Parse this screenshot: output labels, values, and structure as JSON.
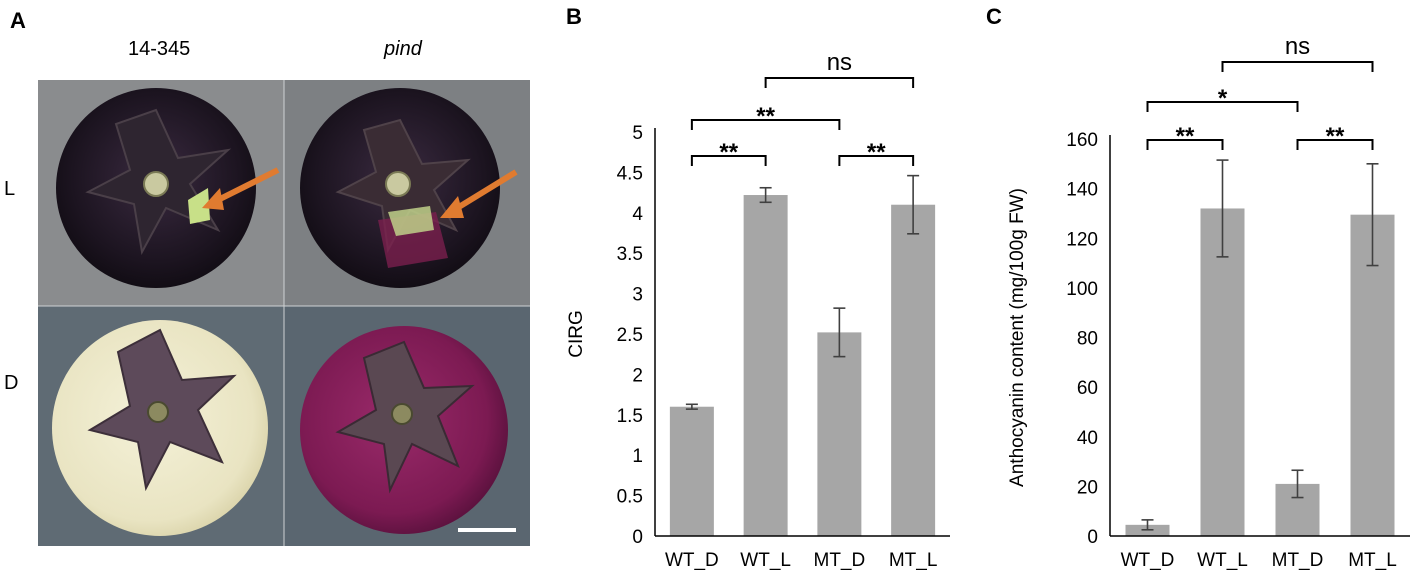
{
  "panels": {
    "a": "A",
    "b": "B",
    "c": "C"
  },
  "photo": {
    "col_labels": [
      "14-345",
      "pind"
    ],
    "row_labels": [
      "L",
      "D"
    ]
  },
  "chart_data": [
    {
      "type": "bar",
      "panel": "B",
      "categories": [
        "WT_D",
        "WT_L",
        "MT_D",
        "MT_L"
      ],
      "values": [
        1.6,
        4.22,
        2.52,
        4.1
      ],
      "errors": [
        0.03,
        0.09,
        0.3,
        0.36
      ],
      "ylabel": "CIRG",
      "ylim": [
        0,
        5
      ],
      "yticks": [
        0,
        0.5,
        1,
        1.5,
        2,
        2.5,
        3,
        3.5,
        4,
        4.5,
        5
      ],
      "bar_color": "#a6a6a6",
      "significance": [
        {
          "from": 0,
          "to": 1,
          "label": "**"
        },
        {
          "from": 2,
          "to": 3,
          "label": "**"
        },
        {
          "from": 0,
          "to": 2,
          "label": "**"
        },
        {
          "from": 1,
          "to": 3,
          "label": "ns"
        }
      ]
    },
    {
      "type": "bar",
      "panel": "C",
      "categories": [
        "WT_D",
        "WT_L",
        "MT_D",
        "MT_L"
      ],
      "values": [
        4.5,
        132,
        21,
        129.5
      ],
      "errors": [
        2,
        19.5,
        5.5,
        20.5
      ],
      "ylabel": "Anthocyanin content  (mg/100g FW)",
      "ylim": [
        0,
        160
      ],
      "yticks": [
        0,
        20,
        40,
        60,
        80,
        100,
        120,
        140,
        160
      ],
      "bar_color": "#a6a6a6",
      "significance": [
        {
          "from": 0,
          "to": 1,
          "label": "**"
        },
        {
          "from": 2,
          "to": 3,
          "label": "**"
        },
        {
          "from": 0,
          "to": 2,
          "label": "*"
        },
        {
          "from": 1,
          "to": 3,
          "label": "ns"
        }
      ]
    }
  ]
}
